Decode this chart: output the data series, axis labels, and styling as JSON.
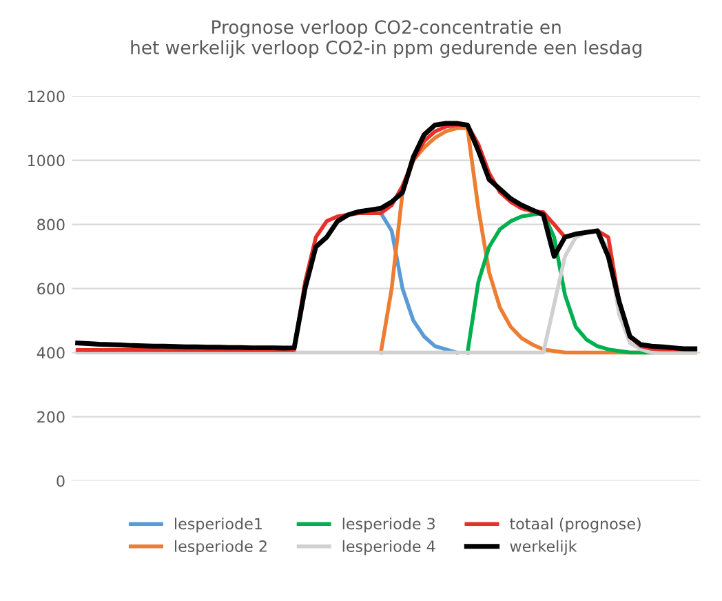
{
  "chart_data": {
    "type": "line",
    "title": "Prognose verloop CO2-concentratie en\nhet werkelijk verloop CO2-in ppm gedurende een lesdag",
    "categories": [
      null,
      null,
      null,
      null,
      null,
      null,
      null,
      null,
      null,
      null,
      null,
      null,
      null,
      null,
      null,
      null,
      null,
      null,
      null,
      null,
      null,
      null,
      null,
      null,
      null,
      null,
      null,
      null,
      null,
      null,
      null,
      null,
      null,
      null,
      null,
      null,
      null,
      null,
      null,
      null,
      null,
      null,
      null,
      null,
      null,
      null,
      null,
      null,
      null,
      null,
      null,
      null,
      null,
      null,
      null,
      null,
      null,
      null
    ],
    "series": [
      {
        "name": "lesperiode1",
        "color": "#5b9bd5",
        "values": [
          null,
          null,
          null,
          null,
          null,
          null,
          null,
          null,
          null,
          null,
          null,
          null,
          null,
          null,
          null,
          null,
          null,
          null,
          null,
          null,
          null,
          null,
          null,
          null,
          null,
          null,
          null,
          null,
          835,
          780,
          600,
          500,
          450,
          420,
          410,
          400,
          null,
          null,
          null,
          null,
          null,
          null,
          null,
          null,
          null,
          null,
          null,
          null,
          null,
          null,
          null,
          null,
          null,
          null,
          null,
          null,
          null,
          null
        ]
      },
      {
        "name": "lesperiode 2",
        "color": "#ed7d31",
        "values": [
          null,
          null,
          null,
          null,
          null,
          null,
          null,
          null,
          null,
          null,
          null,
          null,
          null,
          null,
          null,
          null,
          null,
          null,
          null,
          null,
          null,
          null,
          null,
          null,
          null,
          null,
          null,
          null,
          400,
          600,
          900,
          1000,
          1040,
          1070,
          1090,
          1100,
          1100,
          850,
          650,
          540,
          480,
          445,
          425,
          410,
          405,
          400,
          400,
          400,
          400,
          400,
          400,
          400,
          400,
          400,
          400,
          400,
          400,
          400
        ]
      },
      {
        "name": "lesperiode 3",
        "color": "#00b050",
        "values": [
          null,
          null,
          null,
          null,
          null,
          null,
          null,
          null,
          null,
          null,
          null,
          null,
          null,
          null,
          null,
          null,
          null,
          null,
          null,
          null,
          null,
          null,
          null,
          null,
          null,
          null,
          null,
          null,
          null,
          null,
          null,
          null,
          null,
          null,
          null,
          null,
          400,
          620,
          730,
          785,
          810,
          825,
          830,
          835,
          760,
          580,
          480,
          440,
          420,
          410,
          405,
          400,
          400,
          400,
          null,
          null,
          null,
          null
        ]
      },
      {
        "name": "lesperiode 4",
        "color": "#d0d0d0",
        "values": [
          400,
          400,
          400,
          400,
          400,
          400,
          400,
          400,
          400,
          400,
          400,
          400,
          400,
          400,
          400,
          400,
          400,
          400,
          400,
          400,
          400,
          400,
          400,
          400,
          400,
          400,
          400,
          400,
          400,
          400,
          400,
          400,
          400,
          400,
          400,
          400,
          400,
          400,
          400,
          400,
          400,
          400,
          400,
          400,
          550,
          700,
          760,
          775,
          780,
          720,
          520,
          430,
          410,
          400,
          400,
          400,
          400,
          400
        ]
      },
      {
        "name": "totaal (prognose)",
        "color": "#e8302a",
        "values": [
          408,
          408,
          408,
          408,
          408,
          408,
          408,
          408,
          408,
          408,
          408,
          408,
          408,
          408,
          408,
          408,
          408,
          408,
          408,
          408,
          408,
          620,
          760,
          810,
          825,
          830,
          835,
          835,
          835,
          860,
          920,
          1000,
          1060,
          1090,
          1105,
          1110,
          1110,
          1050,
          960,
          900,
          870,
          850,
          840,
          838,
          800,
          760,
          770,
          775,
          780,
          760,
          560,
          450,
          420,
          412,
          410,
          410,
          410,
          410
        ]
      },
      {
        "name": "werkelijk",
        "color": "#000000",
        "values": [
          430,
          428,
          426,
          425,
          424,
          422,
          421,
          420,
          420,
          419,
          418,
          418,
          417,
          417,
          416,
          416,
          415,
          415,
          415,
          414,
          415,
          600,
          730,
          760,
          810,
          830,
          840,
          845,
          850,
          870,
          900,
          1010,
          1080,
          1110,
          1115,
          1115,
          1110,
          1030,
          940,
          910,
          880,
          860,
          845,
          830,
          700,
          760,
          770,
          775,
          780,
          700,
          560,
          450,
          425,
          420,
          418,
          415,
          412,
          412
        ]
      }
    ],
    "ylim": [
      0,
      1200
    ],
    "yticks": [
      0,
      200,
      400,
      600,
      800,
      1000,
      1200
    ],
    "grid": "y",
    "legend": "bottom",
    "tick_labels": "y",
    "marker": "none",
    "line_style": "solid"
  }
}
